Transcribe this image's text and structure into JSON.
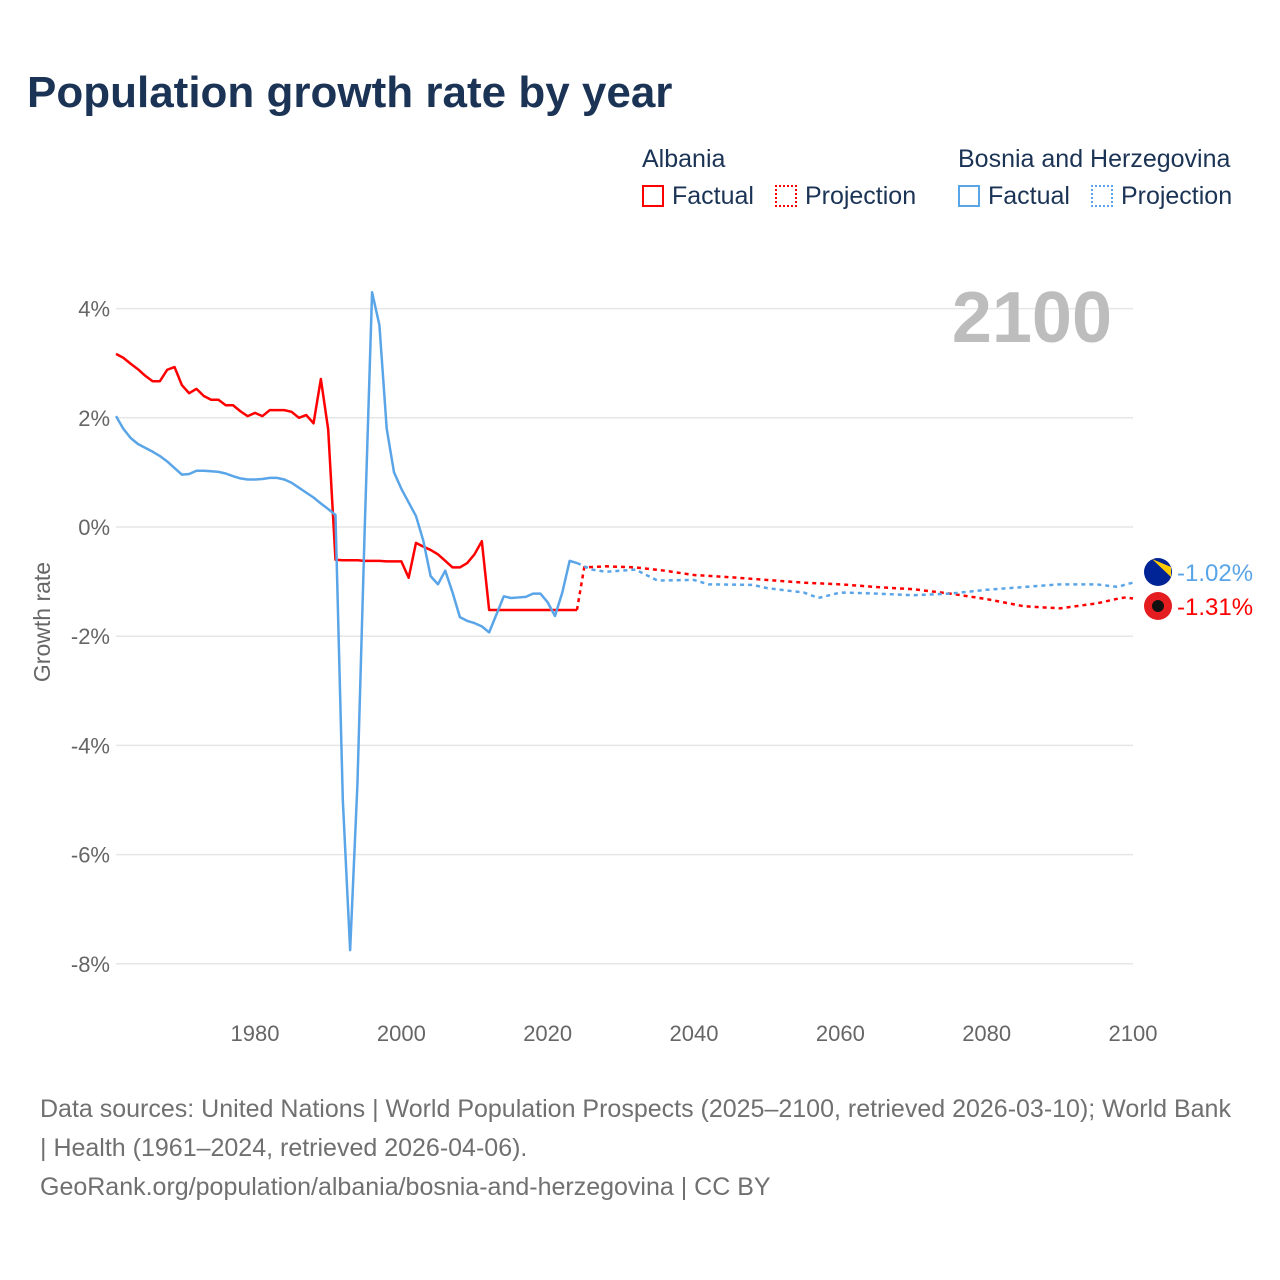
{
  "title": "Population growth rate by year",
  "legend": {
    "groups": [
      {
        "name": "Albania",
        "color": "#ff0000",
        "factual": "Factual",
        "projection": "Projection"
      },
      {
        "name": "Bosnia and Herzegovina",
        "color": "#5aa5e8",
        "factual": "Factual",
        "projection": "Projection"
      }
    ]
  },
  "footer": {
    "line1": "Data sources: United Nations | World Population Prospects (2025–2100, retrieved 2026-03-10); World Bank | Health (1961–2024, retrieved 2026-04-06).",
    "line2": "GeoRank.org/population/albania/bosnia-and-herzegovina | CC BY"
  },
  "chart_data": {
    "type": "line",
    "title": "Population growth rate by year",
    "ylabel": "Growth rate",
    "year_label": "2100",
    "xlim": [
      1961,
      2100
    ],
    "ylim": [
      -8.6,
      4.6
    ],
    "xticks": [
      1980,
      2000,
      2020,
      2040,
      2060,
      2080,
      2100
    ],
    "yticks": [
      {
        "v": 4,
        "l": "4%"
      },
      {
        "v": 2,
        "l": "2%"
      },
      {
        "v": 0,
        "l": "0%"
      },
      {
        "v": -2,
        "l": "-2%"
      },
      {
        "v": -4,
        "l": "-4%"
      },
      {
        "v": -6,
        "l": "-6%"
      },
      {
        "v": -8,
        "l": "-8%"
      }
    ],
    "series": [
      {
        "name": "Albania",
        "color": "#ff0000",
        "end_label": "-1.31%",
        "factual_start": 1961,
        "factual": [
          3.17,
          3.1,
          2.99,
          2.89,
          2.77,
          2.67,
          2.67,
          2.88,
          2.93,
          2.6,
          2.45,
          2.53,
          2.4,
          2.33,
          2.33,
          2.23,
          2.23,
          2.12,
          2.03,
          2.09,
          2.03,
          2.14,
          2.14,
          2.14,
          2.11,
          2.0,
          2.05,
          1.9,
          2.71,
          1.79,
          -0.6,
          -0.61,
          -0.61,
          -0.61,
          -0.62,
          -0.62,
          -0.62,
          -0.63,
          -0.63,
          -0.63,
          -0.93,
          -0.29,
          -0.36,
          -0.42,
          -0.5,
          -0.62,
          -0.74,
          -0.74,
          -0.66,
          -0.5,
          -0.26,
          -1.52,
          -1.52,
          -1.52,
          -1.52,
          -1.52,
          -1.52,
          -1.52,
          -1.52,
          -1.52,
          -1.52,
          -1.52,
          -1.52,
          -1.52
        ],
        "projection": [
          [
            2024,
            -1.52
          ],
          [
            2025,
            -0.74
          ],
          [
            2028,
            -0.72
          ],
          [
            2032,
            -0.74
          ],
          [
            2036,
            -0.8
          ],
          [
            2040,
            -0.88
          ],
          [
            2045,
            -0.92
          ],
          [
            2050,
            -0.97
          ],
          [
            2055,
            -1.02
          ],
          [
            2060,
            -1.05
          ],
          [
            2065,
            -1.1
          ],
          [
            2070,
            -1.14
          ],
          [
            2075,
            -1.22
          ],
          [
            2080,
            -1.32
          ],
          [
            2085,
            -1.45
          ],
          [
            2090,
            -1.49
          ],
          [
            2095,
            -1.4
          ],
          [
            2098,
            -1.31
          ],
          [
            2099,
            -1.29
          ],
          [
            2100,
            -1.31
          ]
        ]
      },
      {
        "name": "Bosnia and Herzegovina",
        "color": "#5aa5e8",
        "end_label": "-1.02%",
        "factual_start": 1961,
        "factual": [
          2.03,
          1.8,
          1.63,
          1.52,
          1.45,
          1.38,
          1.3,
          1.2,
          1.08,
          0.96,
          0.97,
          1.03,
          1.03,
          1.02,
          1.01,
          0.98,
          0.93,
          0.89,
          0.87,
          0.87,
          0.88,
          0.9,
          0.9,
          0.87,
          0.81,
          0.72,
          0.63,
          0.54,
          0.43,
          0.33,
          0.22,
          -5.0,
          -7.75,
          -4.7,
          0.0,
          4.3,
          3.7,
          1.8,
          1.0,
          0.7,
          0.45,
          0.2,
          -0.25,
          -0.9,
          -1.05,
          -0.8,
          -1.2,
          -1.65,
          -1.72,
          -1.76,
          -1.82,
          -1.93,
          -1.6,
          -1.27,
          -1.3,
          -1.29,
          -1.28,
          -1.22,
          -1.22,
          -1.38,
          -1.63,
          -1.2,
          -0.62,
          -0.66
        ],
        "projection": [
          [
            2024,
            -0.66
          ],
          [
            2026,
            -0.78
          ],
          [
            2028,
            -0.82
          ],
          [
            2032,
            -0.78
          ],
          [
            2035,
            -0.98
          ],
          [
            2040,
            -0.97
          ],
          [
            2042,
            -1.05
          ],
          [
            2048,
            -1.06
          ],
          [
            2050,
            -1.12
          ],
          [
            2055,
            -1.2
          ],
          [
            2057,
            -1.3
          ],
          [
            2060,
            -1.2
          ],
          [
            2065,
            -1.22
          ],
          [
            2070,
            -1.25
          ],
          [
            2075,
            -1.22
          ],
          [
            2080,
            -1.15
          ],
          [
            2085,
            -1.1
          ],
          [
            2090,
            -1.05
          ],
          [
            2095,
            -1.05
          ],
          [
            2098,
            -1.1
          ],
          [
            2099,
            -1.05
          ],
          [
            2100,
            -1.02
          ]
        ]
      }
    ]
  }
}
